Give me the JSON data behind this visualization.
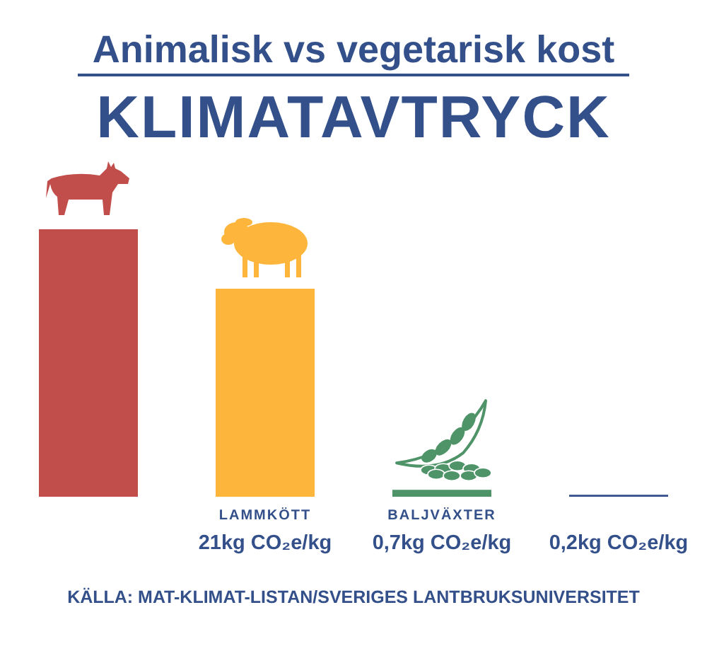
{
  "chart_data": {
    "type": "bar",
    "title": "KLIMATAVTRYCK",
    "subtitle": "Animalisk vs vegetarisk kost",
    "categories": [
      null,
      "LAMMKÖTT",
      "BALJVÄXTER",
      null
    ],
    "values": [
      27,
      21,
      0.7,
      0.2
    ],
    "colors": [
      "#c24e4b",
      "#fdb53b",
      "#4f9469",
      "#34508a"
    ],
    "value_labels": [
      null,
      "21kg CO₂e/kg",
      "0,7kg CO₂e/kg",
      "0,2kg CO₂e/kg"
    ],
    "annotations": [
      "KÄLLA: MAT-KLIMAT-LISTAN/SVERIGES LANTBRUKSUNIVERSITET"
    ]
  }
}
